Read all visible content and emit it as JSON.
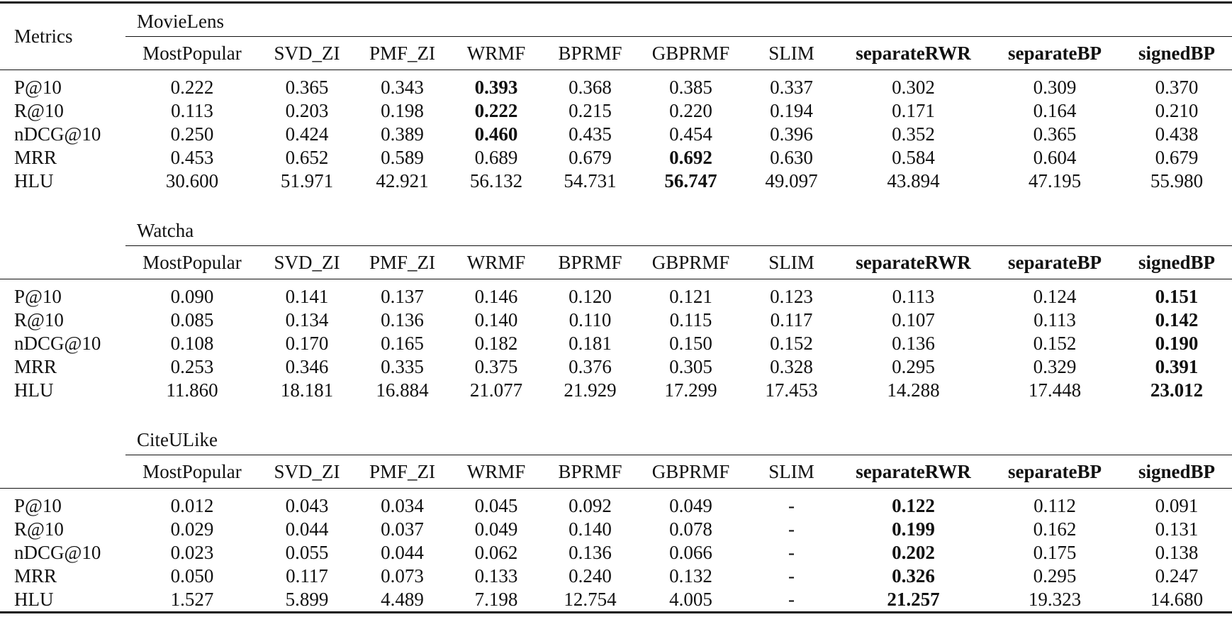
{
  "table": {
    "header": "Metrics",
    "sections": [
      {
        "title": "MovieLens",
        "columns": [
          "MostPopular",
          "SVD_ZI",
          "PMF_ZI",
          "WRMF",
          "BPRMF",
          "GBPRMF",
          "SLIM",
          {
            "text": "separateRWR",
            "bold": true
          },
          {
            "text": "separateBP",
            "bold": true
          },
          {
            "text": "signedBP",
            "bold": true
          }
        ],
        "rows": [
          {
            "metric": "P@10",
            "values": [
              "0.222",
              "0.365",
              "0.343",
              {
                "text": "0.393",
                "bold": true
              },
              "0.368",
              "0.385",
              "0.337",
              "0.302",
              "0.309",
              "0.370"
            ]
          },
          {
            "metric": "R@10",
            "values": [
              "0.113",
              "0.203",
              "0.198",
              {
                "text": "0.222",
                "bold": true
              },
              "0.215",
              "0.220",
              "0.194",
              "0.171",
              "0.164",
              "0.210"
            ]
          },
          {
            "metric": "nDCG@10",
            "values": [
              "0.250",
              "0.424",
              "0.389",
              {
                "text": "0.460",
                "bold": true
              },
              "0.435",
              "0.454",
              "0.396",
              "0.352",
              "0.365",
              "0.438"
            ]
          },
          {
            "metric": "MRR",
            "values": [
              "0.453",
              "0.652",
              "0.589",
              "0.689",
              "0.679",
              {
                "text": "0.692",
                "bold": true
              },
              "0.630",
              "0.584",
              "0.604",
              "0.679"
            ]
          },
          {
            "metric": "HLU",
            "values": [
              "30.600",
              "51.971",
              "42.921",
              "56.132",
              "54.731",
              {
                "text": "56.747",
                "bold": true
              },
              "49.097",
              "43.894",
              "47.195",
              "55.980"
            ]
          }
        ]
      },
      {
        "title": "Watcha",
        "columns": [
          "MostPopular",
          "SVD_ZI",
          "PMF_ZI",
          "WRMF",
          "BPRMF",
          "GBPRMF",
          "SLIM",
          {
            "text": "separateRWR",
            "bold": true
          },
          {
            "text": "separateBP",
            "bold": true
          },
          {
            "text": "signedBP",
            "bold": true
          }
        ],
        "rows": [
          {
            "metric": "P@10",
            "values": [
              "0.090",
              "0.141",
              "0.137",
              "0.146",
              "0.120",
              "0.121",
              "0.123",
              "0.113",
              "0.124",
              {
                "text": "0.151",
                "bold": true
              }
            ]
          },
          {
            "metric": "R@10",
            "values": [
              "0.085",
              "0.134",
              "0.136",
              "0.140",
              "0.110",
              "0.115",
              "0.117",
              "0.107",
              "0.113",
              {
                "text": "0.142",
                "bold": true
              }
            ]
          },
          {
            "metric": "nDCG@10",
            "values": [
              "0.108",
              "0.170",
              "0.165",
              "0.182",
              "0.181",
              "0.150",
              "0.152",
              "0.136",
              "0.152",
              {
                "text": "0.190",
                "bold": true
              }
            ]
          },
          {
            "metric": "MRR",
            "values": [
              "0.253",
              "0.346",
              "0.335",
              "0.375",
              "0.376",
              "0.305",
              "0.328",
              "0.295",
              "0.329",
              {
                "text": "0.391",
                "bold": true
              }
            ]
          },
          {
            "metric": "HLU",
            "values": [
              "11.860",
              "18.181",
              "16.884",
              "21.077",
              "21.929",
              "17.299",
              "17.453",
              "14.288",
              "17.448",
              {
                "text": "23.012",
                "bold": true
              }
            ]
          }
        ]
      },
      {
        "title": "CiteULike",
        "columns": [
          "MostPopular",
          "SVD_ZI",
          "PMF_ZI",
          "WRMF",
          "BPRMF",
          "GBPRMF",
          "SLIM",
          {
            "text": "separateRWR",
            "bold": true
          },
          {
            "text": "separateBP",
            "bold": true
          },
          {
            "text": "signedBP",
            "bold": true
          }
        ],
        "rows": [
          {
            "metric": "P@10",
            "values": [
              "0.012",
              "0.043",
              "0.034",
              "0.045",
              "0.092",
              "0.049",
              "-",
              {
                "text": "0.122",
                "bold": true
              },
              "0.112",
              "0.091"
            ]
          },
          {
            "metric": "R@10",
            "values": [
              "0.029",
              "0.044",
              "0.037",
              "0.049",
              "0.140",
              "0.078",
              "-",
              {
                "text": "0.199",
                "bold": true
              },
              "0.162",
              "0.131"
            ]
          },
          {
            "metric": "nDCG@10",
            "values": [
              "0.023",
              "0.055",
              "0.044",
              "0.062",
              "0.136",
              "0.066",
              "-",
              {
                "text": "0.202",
                "bold": true
              },
              "0.175",
              "0.138"
            ]
          },
          {
            "metric": "MRR",
            "values": [
              "0.050",
              "0.117",
              "0.073",
              "0.133",
              "0.240",
              "0.132",
              "-",
              {
                "text": "0.326",
                "bold": true
              },
              "0.295",
              "0.247"
            ]
          },
          {
            "metric": "HLU",
            "values": [
              "1.527",
              "5.899",
              "4.489",
              "7.198",
              "12.754",
              "4.005",
              "-",
              {
                "text": "21.257",
                "bold": true
              },
              "19.323",
              "14.680"
            ]
          }
        ]
      }
    ]
  }
}
